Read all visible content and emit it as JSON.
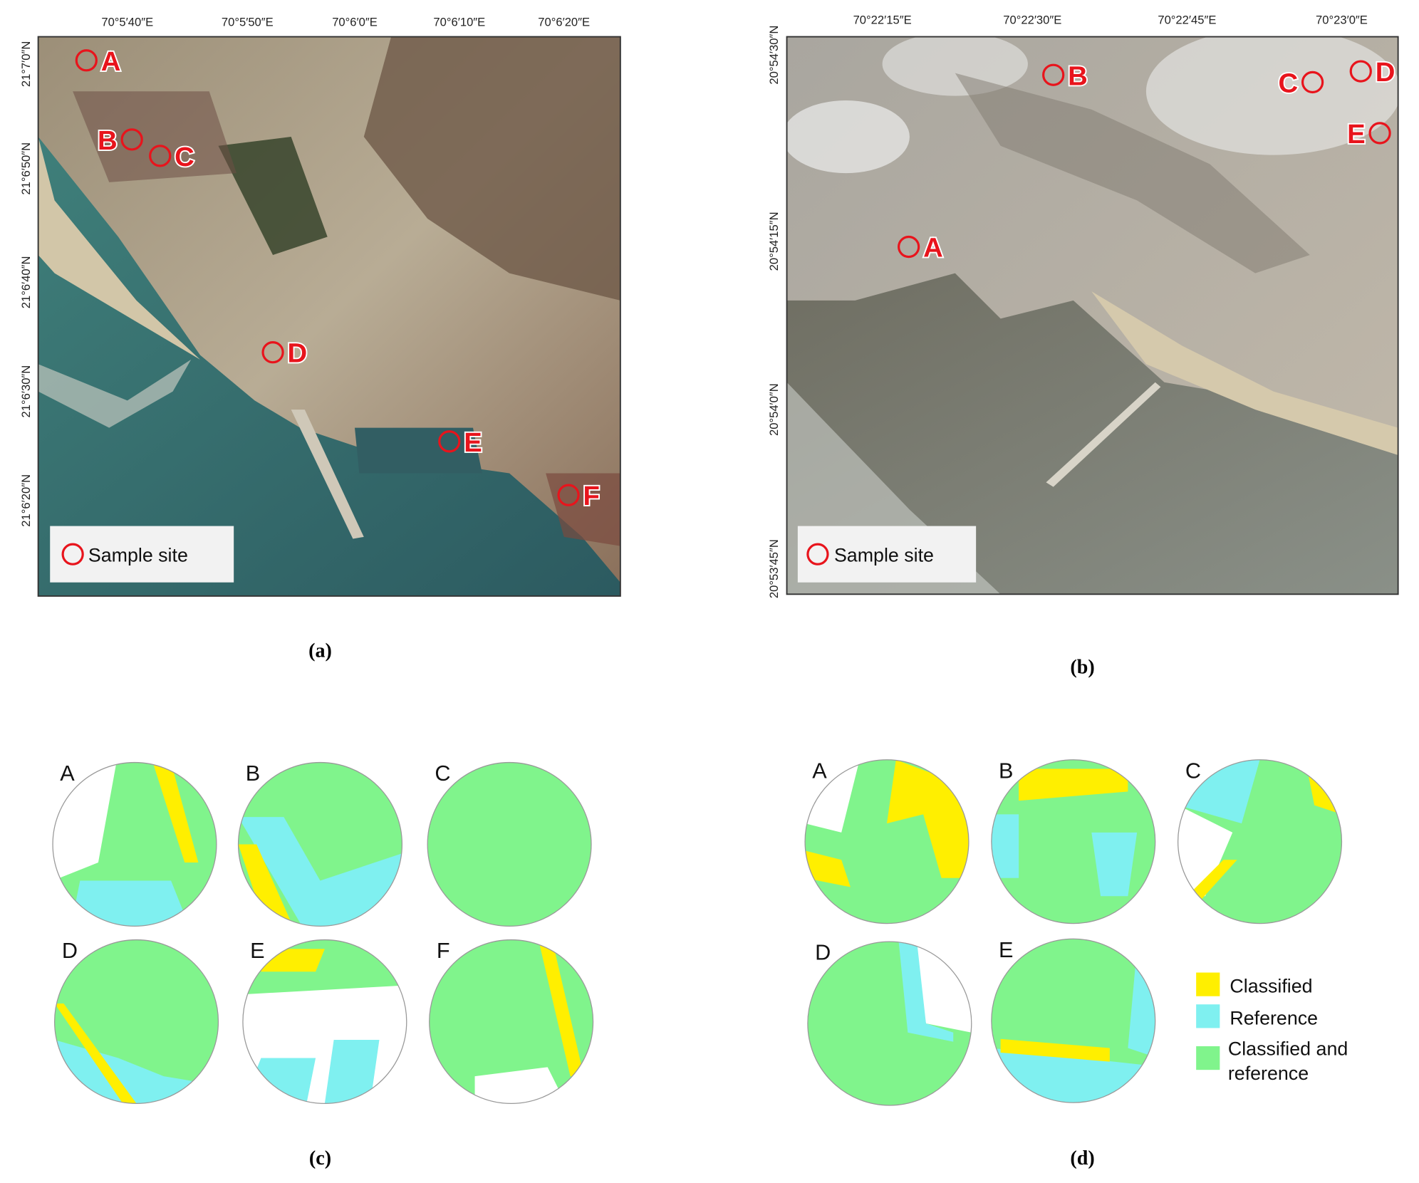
{
  "panels": [
    {
      "caption": "(a)",
      "lon_labels": [
        "70°5′40″E",
        "70°5′50″E",
        "70°6′0″E",
        "70°6′10″E",
        "70°6′20″E"
      ],
      "lat_labels": [
        "21°7′0″N",
        "21°6′50″N",
        "21°6′40″N",
        "21°6′30″N",
        "21°6′20″N"
      ],
      "sites": [
        "A",
        "B",
        "C",
        "D",
        "E",
        "F"
      ],
      "legend": "Sample site"
    },
    {
      "caption": "(b)",
      "lon_labels": [
        "70°22′15″E",
        "70°22′30″E",
        "70°22′45″E",
        "70°23′0″E"
      ],
      "lat_labels": [
        "20°54′30″N",
        "20°54′15″N",
        "20°54′0″N",
        "20°53′45″N"
      ],
      "sites": [
        "B",
        "C",
        "D",
        "E",
        "A"
      ],
      "legend": "Sample site"
    },
    {
      "caption": "(c)",
      "circles": [
        "A",
        "B",
        "C",
        "D",
        "E",
        "F"
      ]
    },
    {
      "caption": "(d)",
      "circles": [
        "A",
        "B",
        "C",
        "D",
        "E"
      ],
      "legend": [
        "Classified",
        "Reference",
        "Classified and reference"
      ]
    }
  ]
}
